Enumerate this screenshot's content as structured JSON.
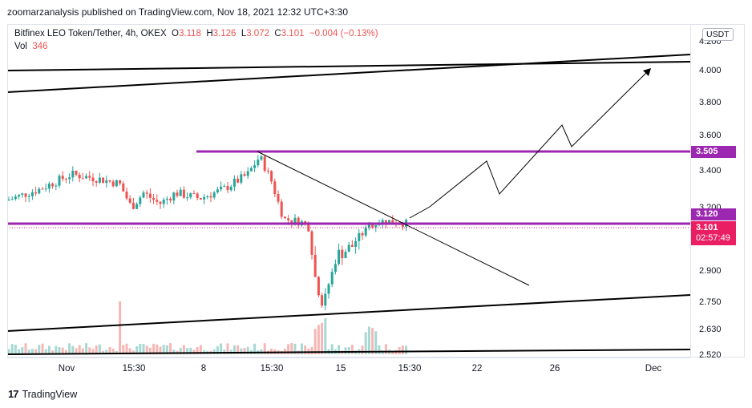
{
  "header": {
    "published": "zoomarzanalysis published on TradingView.com, Nov 18, 2021 12:32 UTC+3:30"
  },
  "legend": {
    "symbol": "Bitfinex LEO Token/Tether, 4h, OKEX",
    "o_label": "O",
    "o_value": "3.118",
    "h_label": "H",
    "h_value": "3.126",
    "l_label": "L",
    "l_value": "3.072",
    "c_label": "C",
    "c_value": "3.101",
    "change": "−0.004 (−0.13%)",
    "vol_label": "Vol",
    "vol_value": "346"
  },
  "y_axis": {
    "currency": "USDT",
    "ticks": [
      "4.200",
      "4.000",
      "3.800",
      "3.600",
      "3.400",
      "3.200",
      "2.900",
      "2.750",
      "2.630",
      "2.520"
    ]
  },
  "price_labels": {
    "level_high": "3.505",
    "level_low": "3.120",
    "last_price": "3.101",
    "countdown": "02:57:49"
  },
  "x_axis": {
    "ticks": [
      "Nov",
      "15:30",
      "8",
      "15:30",
      "15",
      "15:30",
      "22",
      "26",
      "Dec"
    ]
  },
  "colors": {
    "up": "#26a69a",
    "down": "#ef5350",
    "level": "#9c27b0",
    "last_price": "#e91e63"
  },
  "footer": {
    "brand": "TradingView"
  }
}
